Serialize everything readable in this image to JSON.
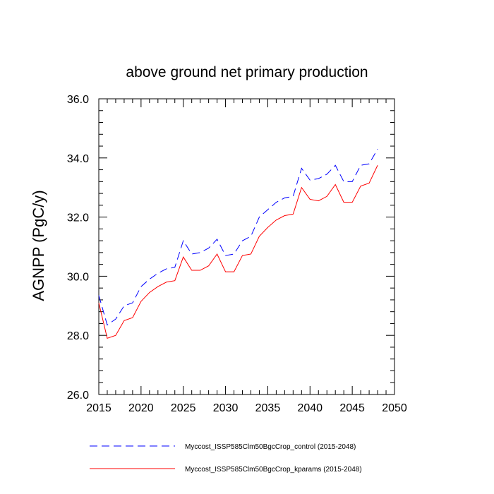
{
  "chart_data": {
    "type": "line",
    "title": "above ground net primary production",
    "xlabel": "",
    "ylabel": "AGNPP  (PgC/y)",
    "xlim": [
      2015,
      2050
    ],
    "ylim": [
      26.0,
      36.0
    ],
    "x_ticks": [
      "2015",
      "2020",
      "2025",
      "2030",
      "2035",
      "2040",
      "2045",
      "2050"
    ],
    "y_ticks": [
      "26.0",
      "28.0",
      "30.0",
      "32.0",
      "34.0",
      "36.0"
    ],
    "grid": false,
    "legend_position": "bottom",
    "x": [
      2015,
      2016,
      2017,
      2018,
      2019,
      2020,
      2021,
      2022,
      2023,
      2024,
      2025,
      2026,
      2027,
      2028,
      2029,
      2030,
      2031,
      2032,
      2033,
      2034,
      2035,
      2036,
      2037,
      2038,
      2039,
      2040,
      2041,
      2042,
      2043,
      2044,
      2045,
      2046,
      2047,
      2048
    ],
    "series": [
      {
        "name": "Myccost_ISSP585Clm50BgcCrop_control (2015-2048)",
        "color": "#0000ff",
        "dash": "dashed",
        "values": [
          29.35,
          28.35,
          28.55,
          29.0,
          29.1,
          29.65,
          29.9,
          30.1,
          30.25,
          30.3,
          31.2,
          30.75,
          30.8,
          30.95,
          31.25,
          30.7,
          30.75,
          31.2,
          31.35,
          32.0,
          32.25,
          32.5,
          32.65,
          32.7,
          33.65,
          33.25,
          33.3,
          33.45,
          33.75,
          33.2,
          33.2,
          33.75,
          33.8,
          34.3
        ]
      },
      {
        "name": "Myccost_ISSP585Clm50BgcCrop_kparams (2015-2048)",
        "color": "#ff0000",
        "dash": "solid",
        "values": [
          29.1,
          27.9,
          28.0,
          28.5,
          28.6,
          29.15,
          29.45,
          29.65,
          29.8,
          29.85,
          30.65,
          30.2,
          30.2,
          30.35,
          30.75,
          30.15,
          30.15,
          30.7,
          30.75,
          31.35,
          31.65,
          31.9,
          32.05,
          32.1,
          33.0,
          32.6,
          32.55,
          32.7,
          33.1,
          32.5,
          32.5,
          33.05,
          33.15,
          33.75
        ]
      }
    ]
  }
}
